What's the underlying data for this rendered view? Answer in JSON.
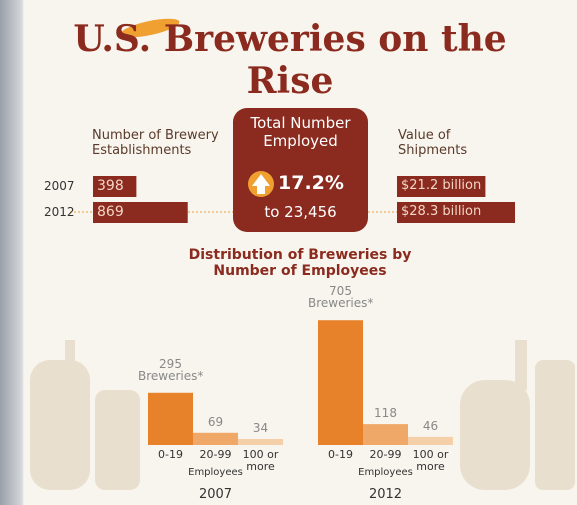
{
  "title": "U.S. Breweries on the Rise",
  "establishments": {
    "label": "Number of Brewery Establishments",
    "color": "#8b2a1e",
    "years": [
      "2007",
      "2012"
    ],
    "values": [
      398,
      869
    ]
  },
  "employed": {
    "label": "Total Number Employed",
    "change": "17.2%",
    "total": "to 23,456"
  },
  "shipments": {
    "label": "Value of Shipments",
    "color": "#8b2a1e",
    "values": [
      21.2,
      28.3
    ],
    "value_labels": [
      "$21.2 billion",
      "$28.3 billion"
    ]
  },
  "distribution": {
    "title": "Distribution of Breweries by Number of Employees",
    "unit": "Breweries*",
    "axis_label": "Employees",
    "categories": [
      "0-19",
      "20-99",
      "100 or more"
    ],
    "colors": [
      "#e8822a",
      "#f0a868",
      "#f5cfa8"
    ],
    "groups": [
      {
        "year": "2007",
        "values": [
          295,
          69,
          34
        ]
      },
      {
        "year": "2012",
        "values": [
          705,
          118,
          46
        ]
      }
    ]
  }
}
